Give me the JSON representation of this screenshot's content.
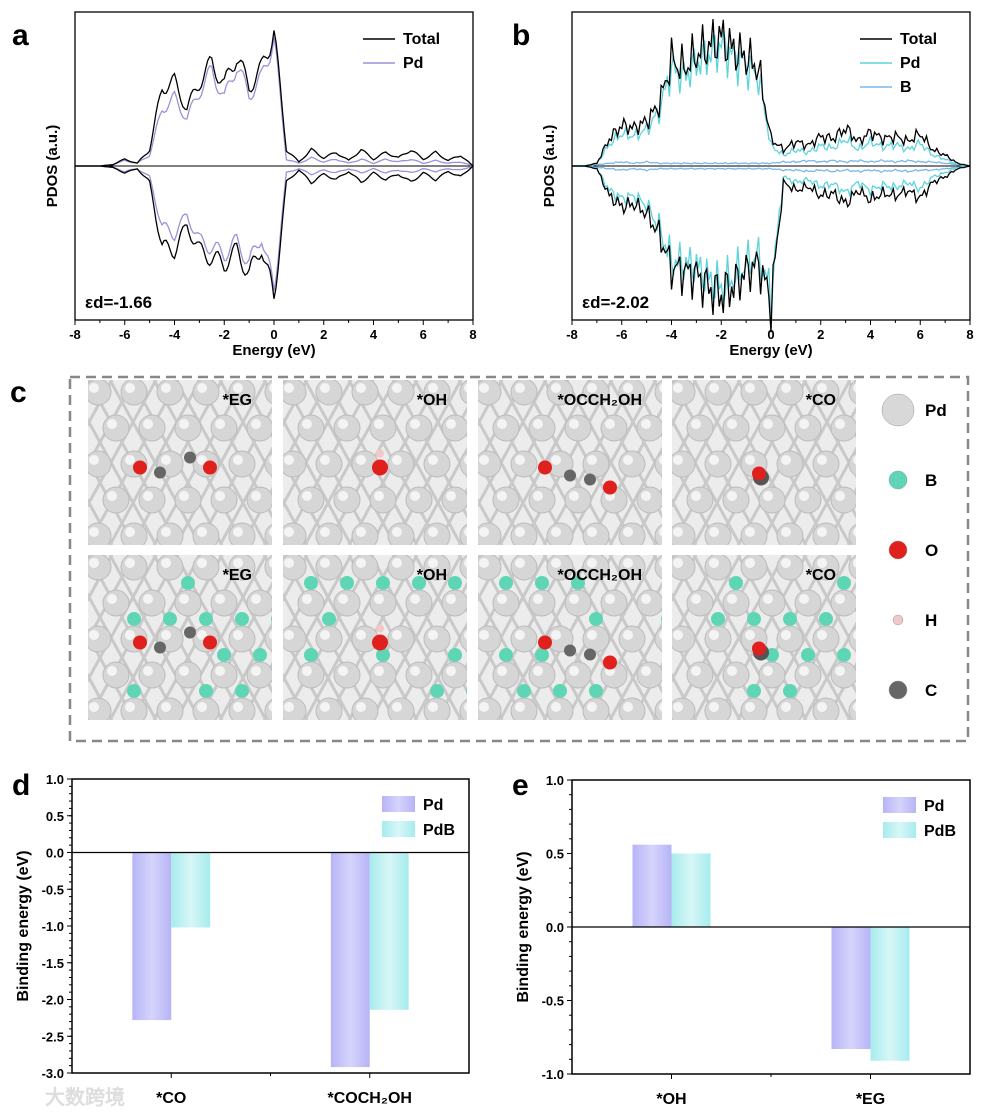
{
  "chart_data": [
    {
      "panel": "a",
      "type": "line",
      "xlabel": "Energy (eV)",
      "ylabel": "PDOS (a.u.)",
      "xlim": [
        -8,
        8
      ],
      "xticks": [
        "-8",
        "-6",
        "-4",
        "-2",
        "0",
        "2",
        "4",
        "6",
        "8"
      ],
      "annotation": "εd=-1.66",
      "annotation_main": "ε",
      "annotation_sub": "d",
      "annotation_val": "=-1.66",
      "x": [
        -8,
        -7.5,
        -7,
        -6.5,
        -6,
        -5.5,
        -5,
        -4.5,
        -4,
        -3.5,
        -3,
        -2.5,
        -2,
        -1.5,
        -1,
        -0.5,
        0,
        0.5,
        1,
        1.5,
        2,
        2.5,
        3,
        3.5,
        4,
        4.5,
        5,
        5.5,
        6,
        6.5,
        7,
        7.5,
        8
      ],
      "series": [
        {
          "name": "Total",
          "color": "#000000",
          "up": [
            0,
            0,
            0,
            0.01,
            0.05,
            0.02,
            0.12,
            0.58,
            0.62,
            0.42,
            0.62,
            0.76,
            0.6,
            0.82,
            0.58,
            0.72,
            1.0,
            0.12,
            0.03,
            0.12,
            0.06,
            0.1,
            0.04,
            0.12,
            0.05,
            0.1,
            0.06,
            0.12,
            0.05,
            0.1,
            0.04,
            0.08,
            0.0
          ],
          "down": [
            0,
            0,
            0,
            0.01,
            0.05,
            0.02,
            0.12,
            0.6,
            0.62,
            0.44,
            0.62,
            0.68,
            0.72,
            0.62,
            0.8,
            0.6,
            0.98,
            0.12,
            0.03,
            0.12,
            0.06,
            0.1,
            0.04,
            0.12,
            0.05,
            0.1,
            0.06,
            0.12,
            0.05,
            0.1,
            0.04,
            0.08,
            0.0
          ]
        },
        {
          "name": "Pd",
          "color": "#9a92d8",
          "up": [
            0,
            0,
            0,
            0.01,
            0.04,
            0.02,
            0.08,
            0.42,
            0.5,
            0.35,
            0.55,
            0.7,
            0.5,
            0.75,
            0.52,
            0.65,
            0.95,
            0.05,
            0.02,
            0.06,
            0.03,
            0.05,
            0.02,
            0.05,
            0.02,
            0.05,
            0.03,
            0.05,
            0.02,
            0.04,
            0.02,
            0.03,
            0.0
          ],
          "down": [
            0,
            0,
            0,
            0.01,
            0.04,
            0.02,
            0.08,
            0.45,
            0.5,
            0.36,
            0.55,
            0.6,
            0.65,
            0.55,
            0.72,
            0.52,
            0.92,
            0.05,
            0.02,
            0.06,
            0.03,
            0.05,
            0.02,
            0.05,
            0.02,
            0.05,
            0.03,
            0.05,
            0.02,
            0.04,
            0.02,
            0.03,
            0.0
          ]
        }
      ],
      "legend": "top-right"
    },
    {
      "panel": "b",
      "type": "line",
      "xlabel": "Energy (eV)",
      "ylabel": "PDOS (a.u.)",
      "xlim": [
        -8,
        8
      ],
      "xticks": [
        "-8",
        "-6",
        "-4",
        "-2",
        "0",
        "2",
        "4",
        "6",
        "8"
      ],
      "annotation": "εd=-2.02",
      "annotation_main": "ε",
      "annotation_sub": "d",
      "annotation_val": "=-2.02",
      "x": [
        -8,
        -7.5,
        -7,
        -6.5,
        -6,
        -5.5,
        -5,
        -4.5,
        -4,
        -3.5,
        -3,
        -2.5,
        -2,
        -1.5,
        -1,
        -0.5,
        0,
        0.5,
        1,
        1.5,
        2,
        2.5,
        3,
        3.5,
        4,
        4.5,
        5,
        5.5,
        6,
        6.5,
        7,
        7.5,
        8
      ],
      "series": [
        {
          "name": "Total",
          "color": "#000000",
          "up": [
            0,
            0,
            0.02,
            0.2,
            0.3,
            0.28,
            0.33,
            0.45,
            0.78,
            0.72,
            0.82,
            0.88,
            0.95,
            0.85,
            0.8,
            0.72,
            0.2,
            0.12,
            0.18,
            0.15,
            0.22,
            0.2,
            0.28,
            0.18,
            0.25,
            0.2,
            0.22,
            0.18,
            0.24,
            0.12,
            0.08,
            0.02,
            0
          ],
          "down": [
            0,
            0,
            0.02,
            0.22,
            0.3,
            0.28,
            0.35,
            0.5,
            0.75,
            0.78,
            0.8,
            0.9,
            0.95,
            0.88,
            0.78,
            0.72,
            1.0,
            0.12,
            0.18,
            0.15,
            0.22,
            0.2,
            0.28,
            0.18,
            0.25,
            0.2,
            0.22,
            0.18,
            0.24,
            0.12,
            0.08,
            0.02,
            0
          ]
        },
        {
          "name": "Pd",
          "color": "#5fd3dc",
          "up": [
            0,
            0,
            0.02,
            0.16,
            0.24,
            0.22,
            0.27,
            0.4,
            0.72,
            0.66,
            0.76,
            0.82,
            0.9,
            0.8,
            0.74,
            0.66,
            0.15,
            0.08,
            0.12,
            0.1,
            0.15,
            0.13,
            0.2,
            0.12,
            0.18,
            0.14,
            0.16,
            0.12,
            0.17,
            0.08,
            0.05,
            0.01,
            0
          ],
          "down": [
            0,
            0,
            0.02,
            0.18,
            0.24,
            0.22,
            0.29,
            0.45,
            0.7,
            0.72,
            0.74,
            0.84,
            0.9,
            0.82,
            0.72,
            0.66,
            0.95,
            0.08,
            0.12,
            0.1,
            0.15,
            0.13,
            0.2,
            0.12,
            0.18,
            0.14,
            0.16,
            0.12,
            0.17,
            0.08,
            0.05,
            0.01,
            0
          ]
        },
        {
          "name": "B",
          "color": "#7ab8e8",
          "up": [
            0,
            0,
            0.01,
            0.02,
            0.03,
            0.02,
            0.03,
            0.02,
            0.02,
            0.02,
            0.02,
            0.02,
            0.02,
            0.02,
            0.02,
            0.02,
            0.02,
            0.03,
            0.03,
            0.04,
            0.03,
            0.04,
            0.03,
            0.04,
            0.03,
            0.04,
            0.03,
            0.04,
            0.03,
            0.03,
            0.02,
            0.01,
            0
          ],
          "down": [
            0,
            0,
            0.01,
            0.02,
            0.03,
            0.02,
            0.03,
            0.02,
            0.02,
            0.02,
            0.02,
            0.02,
            0.02,
            0.02,
            0.02,
            0.02,
            0.02,
            0.03,
            0.03,
            0.04,
            0.03,
            0.04,
            0.03,
            0.04,
            0.03,
            0.04,
            0.03,
            0.04,
            0.03,
            0.03,
            0.02,
            0.01,
            0
          ]
        }
      ],
      "legend": "top-right"
    },
    {
      "panel": "d",
      "type": "bar",
      "ylabel": "Binding energy (eV)",
      "ylim": [
        -3.0,
        1.0
      ],
      "yticks": [
        "1.0",
        "0.5",
        "0.0",
        "-0.5",
        "-1.0",
        "-1.5",
        "-2.0",
        "-2.5",
        "-3.0"
      ],
      "categories": [
        "*CO",
        "*COCH₂OH"
      ],
      "series": [
        {
          "name": "Pd",
          "color": "#b7b4f7",
          "values": [
            -2.28,
            -2.92
          ]
        },
        {
          "name": "PdB",
          "color": "#a6ecee",
          "values": [
            -1.02,
            -2.14
          ]
        }
      ],
      "legend": "top-right"
    },
    {
      "panel": "e",
      "type": "bar",
      "ylabel": "Binding energy (eV)",
      "ylim": [
        -1.0,
        1.0
      ],
      "yticks": [
        "1.0",
        "0.5",
        "0.0",
        "-0.5",
        "-1.0"
      ],
      "categories": [
        "*OH",
        "*EG"
      ],
      "series": [
        {
          "name": "Pd",
          "color": "#b7b4f7",
          "values": [
            0.56,
            -0.83
          ]
        },
        {
          "name": "PdB",
          "color": "#a6ecee",
          "values": [
            0.5,
            -0.91
          ]
        }
      ],
      "legend": "top-right"
    }
  ],
  "panel_labels": [
    "a",
    "b",
    "c",
    "d",
    "e"
  ],
  "structures": {
    "row_pd": [
      "*EG",
      "*OH",
      "*OCCH₂OH",
      "*CO"
    ],
    "row_pdb": [
      "*EG",
      "*OH",
      "*OCCH₂OH",
      "*CO"
    ],
    "legend": [
      {
        "label": "Pd",
        "color": "#d8d8d8"
      },
      {
        "label": "B",
        "color": "#5ed6b6"
      },
      {
        "label": "O",
        "color": "#e0201c"
      },
      {
        "label": "H",
        "color": "#f2c8c8"
      },
      {
        "label": "C",
        "color": "#666666"
      }
    ]
  },
  "watermark": "大数跨境"
}
